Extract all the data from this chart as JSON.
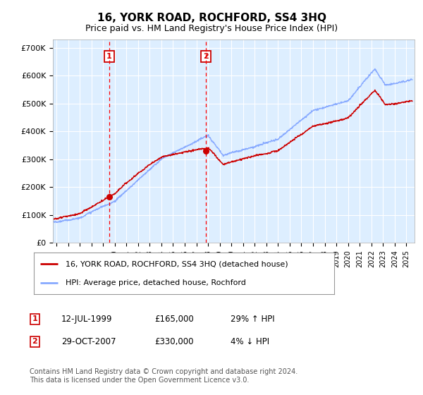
{
  "title": "16, YORK ROAD, ROCHFORD, SS4 3HQ",
  "subtitle": "Price paid vs. HM Land Registry's House Price Index (HPI)",
  "title_fontsize": 11,
  "subtitle_fontsize": 9,
  "background_color": "#ffffff",
  "plot_background_color": "#ddeeff",
  "grid_color": "#ffffff",
  "ylim": [
    0,
    730000
  ],
  "yticks": [
    0,
    100000,
    200000,
    300000,
    400000,
    500000,
    600000,
    700000
  ],
  "ytick_labels": [
    "£0",
    "£100K",
    "£200K",
    "£300K",
    "£400K",
    "£500K",
    "£600K",
    "£700K"
  ],
  "sale1": {
    "date_num": 1999.53,
    "price": 165000,
    "label": "1",
    "date_str": "12-JUL-1999",
    "hpi_pct": "29% ↑ HPI"
  },
  "sale2": {
    "date_num": 2007.83,
    "price": 330000,
    "label": "2",
    "date_str": "29-OCT-2007",
    "hpi_pct": "4% ↓ HPI"
  },
  "legend_line1": "16, YORK ROAD, ROCHFORD, SS4 3HQ (detached house)",
  "legend_line2": "HPI: Average price, detached house, Rochford",
  "footnote": "Contains HM Land Registry data © Crown copyright and database right 2024.\nThis data is licensed under the Open Government Licence v3.0.",
  "hpi_color": "#88aaff",
  "price_color": "#cc0000",
  "marker_color": "#cc0000",
  "vline_color": "#ff0000",
  "box_color": "#cc0000",
  "xlim_left": 1994.7,
  "xlim_right": 2025.7
}
